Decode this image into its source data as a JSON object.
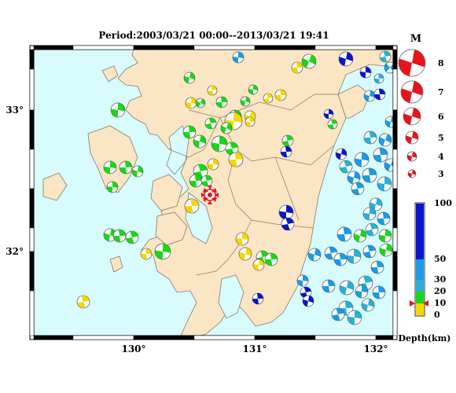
{
  "title": "Period:2003/03/21 00:00--2013/03/21 19:41",
  "lat_labels": [
    "33°",
    "32°"
  ],
  "lon_labels": [
    "130°",
    "131°",
    "132°"
  ],
  "magnitude": {
    "header": "M",
    "items": [
      "8",
      "7",
      "6",
      "5",
      "4",
      "3"
    ]
  },
  "depth": {
    "title": "Depth(km)",
    "ticks": [
      "100",
      "50",
      "30",
      "20",
      "10",
      "0"
    ],
    "colors": {
      "shallow": "#f4d800",
      "mid": "#18d818",
      "deep1": "#2ab0d8",
      "deep2": "#1a9ae8",
      "deepest": "#0a14c8"
    }
  },
  "colors": {
    "land": "#fae5c4",
    "sea": "#d8fbfd",
    "coast": "#8a7a66",
    "epicenter": "#e8141c"
  }
}
